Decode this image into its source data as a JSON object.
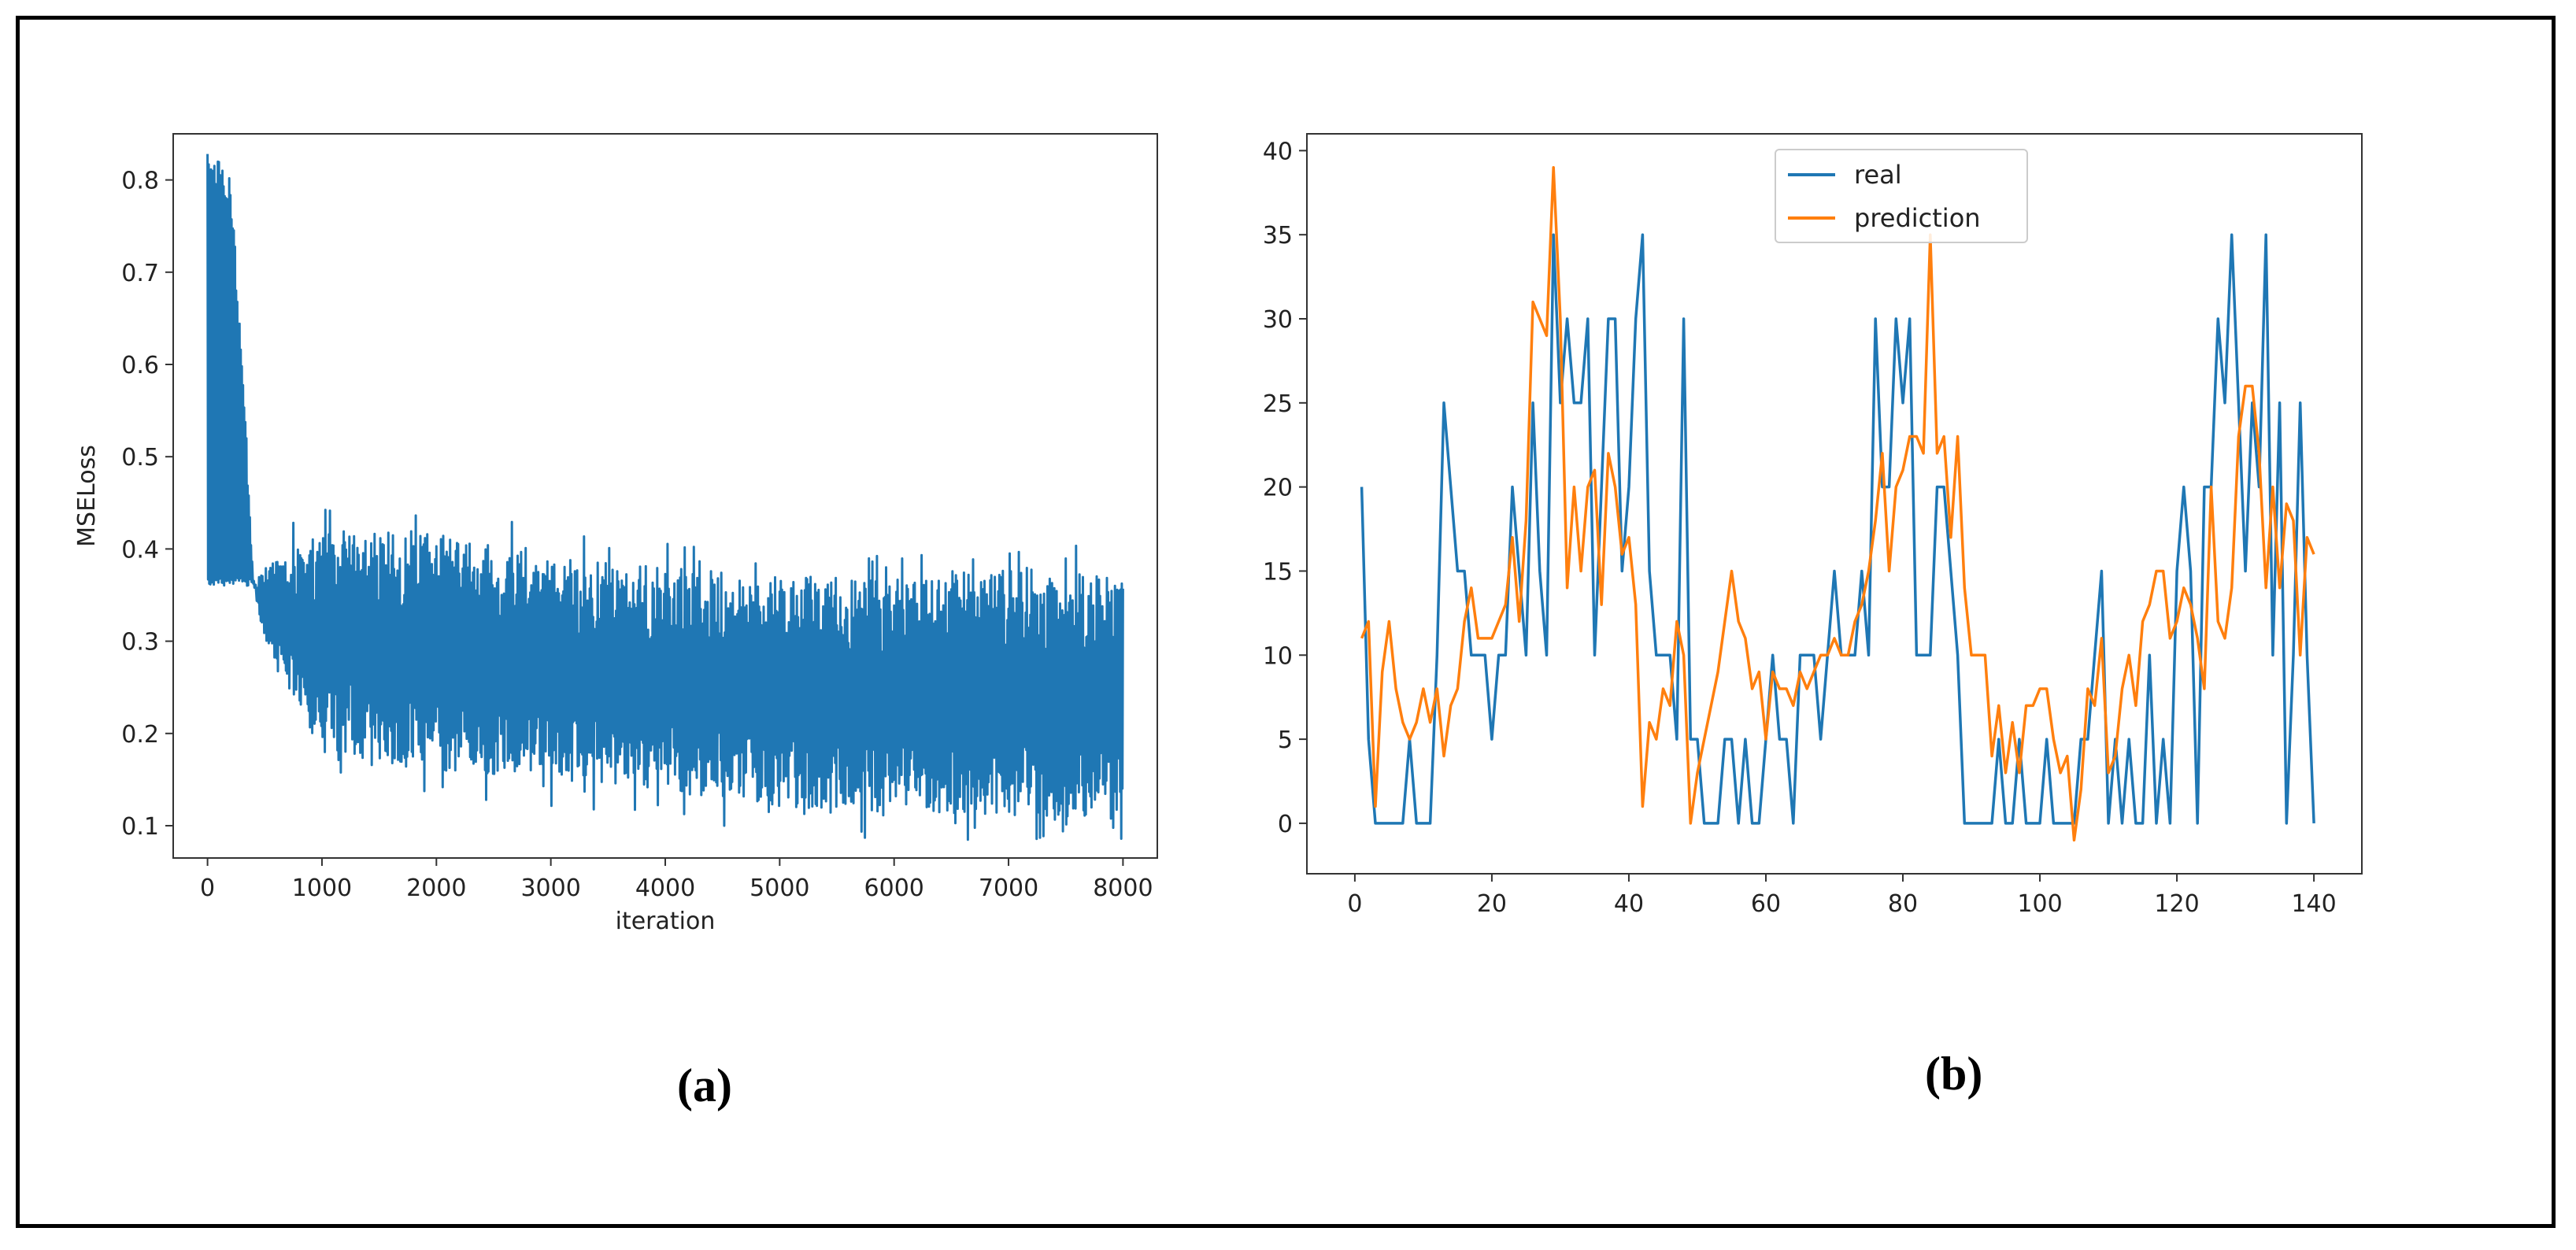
{
  "labels": {
    "a": "(a)",
    "b": "(b)"
  },
  "colors": {
    "blue": "#1f77b4",
    "orange": "#ff7f0e"
  },
  "chart_data": [
    {
      "type": "line",
      "xlabel": "iteration",
      "ylabel": "MSELoss",
      "xlim": [
        -300,
        8300
      ],
      "ylim": [
        0.065,
        0.85
      ],
      "xticks": [
        0,
        1000,
        2000,
        3000,
        4000,
        5000,
        6000,
        7000,
        8000
      ],
      "yticks": [
        0.1,
        0.2,
        0.3,
        0.4,
        0.5,
        0.6,
        0.7,
        0.8
      ],
      "ytick_labels": [
        "0.1",
        "0.2",
        "0.3",
        "0.4",
        "0.5",
        "0.6",
        "0.7",
        "0.8"
      ],
      "series": [
        {
          "color": "#1f77b4",
          "envelope_x": [
            0,
            100,
            200,
            300,
            400,
            500,
            1000,
            2000,
            3000,
            4000,
            5000,
            6000,
            7000,
            8000
          ],
          "envelope_upper": [
            0.83,
            0.82,
            0.8,
            0.62,
            0.37,
            0.38,
            0.42,
            0.42,
            0.39,
            0.38,
            0.37,
            0.37,
            0.38,
            0.37
          ],
          "envelope_lower": [
            0.36,
            0.36,
            0.36,
            0.36,
            0.36,
            0.3,
            0.18,
            0.16,
            0.15,
            0.14,
            0.12,
            0.11,
            0.11,
            0.11
          ]
        }
      ]
    },
    {
      "type": "line",
      "xlim": [
        -7,
        147
      ],
      "ylim": [
        -3,
        41
      ],
      "xticks": [
        0,
        20,
        40,
        60,
        80,
        100,
        120,
        140
      ],
      "yticks": [
        0,
        5,
        10,
        15,
        20,
        25,
        30,
        35,
        40
      ],
      "legend": {
        "position": "top-center"
      },
      "x": [
        1,
        2,
        3,
        4,
        5,
        6,
        7,
        8,
        9,
        10,
        11,
        12,
        13,
        14,
        15,
        16,
        17,
        18,
        19,
        20,
        21,
        22,
        23,
        24,
        25,
        26,
        27,
        28,
        29,
        30,
        31,
        32,
        33,
        34,
        35,
        36,
        37,
        38,
        39,
        40,
        41,
        42,
        43,
        44,
        45,
        46,
        47,
        48,
        49,
        50,
        51,
        52,
        53,
        54,
        55,
        56,
        57,
        58,
        59,
        60,
        61,
        62,
        63,
        64,
        65,
        66,
        67,
        68,
        69,
        70,
        71,
        72,
        73,
        74,
        75,
        76,
        77,
        78,
        79,
        80,
        81,
        82,
        83,
        84,
        85,
        86,
        87,
        88,
        89,
        90,
        91,
        92,
        93,
        94,
        95,
        96,
        97,
        98,
        99,
        100,
        101,
        102,
        103,
        104,
        105,
        106,
        107,
        108,
        109,
        110,
        111,
        112,
        113,
        114,
        115,
        116,
        117,
        118,
        119,
        120,
        121,
        122,
        123,
        124,
        125,
        126,
        127,
        128,
        129,
        130,
        131,
        132,
        133,
        134,
        135,
        136,
        137,
        138,
        139,
        140
      ],
      "series": [
        {
          "name": "real",
          "color": "#1f77b4",
          "values": [
            20,
            5,
            0,
            0,
            0,
            0,
            0,
            5,
            0,
            0,
            0,
            10,
            25,
            20,
            15,
            15,
            10,
            10,
            10,
            5,
            10,
            10,
            20,
            15,
            10,
            25,
            15,
            10,
            35,
            25,
            30,
            25,
            25,
            30,
            10,
            20,
            30,
            30,
            15,
            20,
            30,
            35,
            15,
            10,
            10,
            10,
            5,
            30,
            5,
            5,
            0,
            0,
            0,
            5,
            5,
            0,
            5,
            0,
            0,
            5,
            10,
            5,
            5,
            0,
            10,
            10,
            10,
            5,
            10,
            15,
            10,
            10,
            10,
            15,
            10,
            30,
            20,
            20,
            30,
            25,
            30,
            10,
            10,
            10,
            20,
            20,
            15,
            10,
            0,
            0,
            0,
            0,
            0,
            5,
            0,
            0,
            5,
            0,
            0,
            0,
            5,
            0,
            0,
            0,
            0,
            5,
            5,
            10,
            15,
            0,
            5,
            0,
            5,
            0,
            0,
            10,
            0,
            5,
            0,
            15,
            20,
            15,
            0,
            20,
            20,
            30,
            25,
            35,
            25,
            15,
            25,
            20,
            35,
            10,
            25,
            0,
            10,
            25,
            10,
            0
          ]
        },
        {
          "name": "prediction",
          "color": "#ff7f0e",
          "values": [
            11,
            12,
            1,
            9,
            12,
            8,
            6,
            5,
            6,
            8,
            6,
            8,
            4,
            7,
            8,
            12,
            14,
            11,
            11,
            11,
            12,
            13,
            17,
            12,
            18,
            31,
            30,
            29,
            39,
            30,
            14,
            20,
            15,
            20,
            21,
            13,
            22,
            20,
            16,
            17,
            13,
            1,
            6,
            5,
            8,
            7,
            12,
            10,
            0,
            3,
            5,
            7,
            9,
            12,
            15,
            12,
            11,
            8,
            9,
            5,
            9,
            8,
            8,
            7,
            9,
            8,
            9,
            10,
            10,
            11,
            10,
            10,
            12,
            13,
            15,
            18,
            22,
            15,
            20,
            21,
            23,
            23,
            22,
            35,
            22,
            23,
            17,
            23,
            14,
            10,
            10,
            10,
            4,
            7,
            3,
            6,
            3,
            7,
            7,
            8,
            8,
            5,
            3,
            4,
            -1,
            2,
            8,
            7,
            11,
            3,
            4,
            8,
            10,
            7,
            12,
            13,
            15,
            15,
            11,
            12,
            14,
            13,
            11,
            8,
            20,
            12,
            11,
            14,
            23,
            26,
            26,
            22,
            14,
            20,
            14,
            19,
            18,
            10,
            17,
            16
          ]
        }
      ]
    }
  ]
}
